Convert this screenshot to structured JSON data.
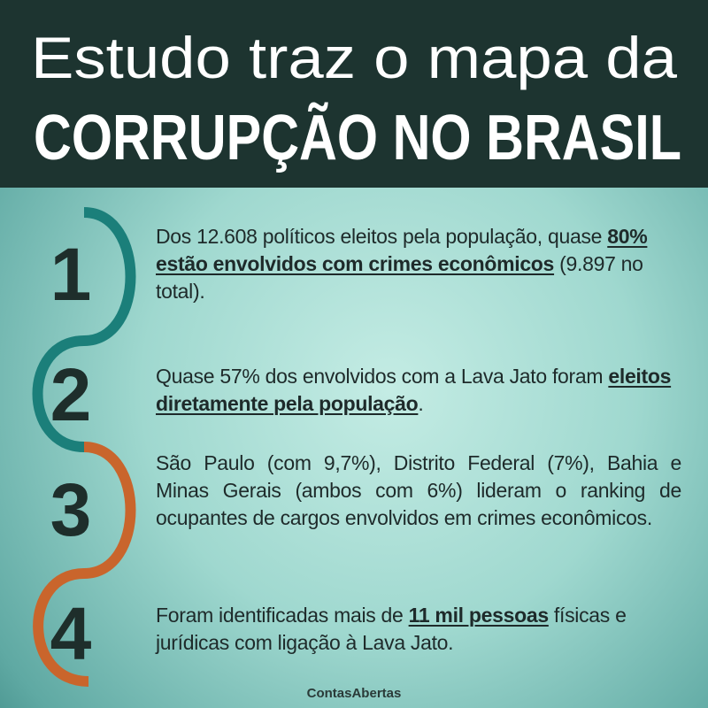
{
  "header": {
    "title": [
      "Estudo traz o mapa da",
      "CORRUPÇÃO NO BRASIL"
    ]
  },
  "items": [
    {
      "number": "1",
      "text": [
        "Dos 12.608 políticos eleitos pela população, quase ",
        "80% estão envolvidos com crimes econômicos",
        " (9.897 no total)."
      ]
    },
    {
      "number": "2",
      "text": [
        "Quase 57% dos envolvidos com a Lava Jato foram ",
        "eleitos diretamente pela população",
        "."
      ]
    },
    {
      "number": "3",
      "text": [
        "São Paulo (com 9,7%), Distrito Federal (7%), Bahia e Minas Gerais (ambos com 6%) lideram o ranking de ocupantes de cargos envolvidos em crimes econômicos."
      ]
    },
    {
      "number": "4",
      "text": [
        "Foram identificadas mais de ",
        "11 mil pessoas",
        " físicas e jurídicas com ligação à Lava Jato."
      ]
    }
  ],
  "footer": {
    "brand": "ContasAbertas"
  }
}
